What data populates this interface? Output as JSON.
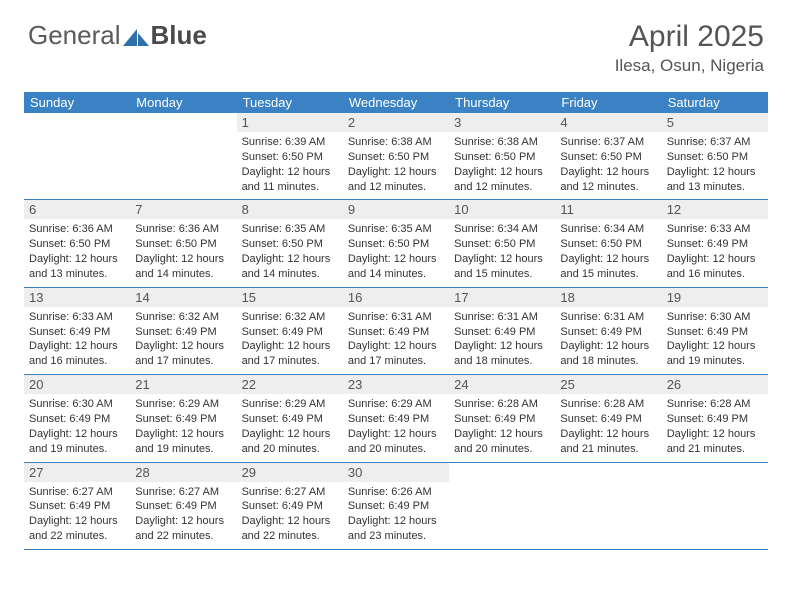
{
  "logo": {
    "general": "General",
    "blue": "Blue"
  },
  "header": {
    "title": "April 2025",
    "location": "Ilesa, Osun, Nigeria"
  },
  "colors": {
    "headerBar": "#3b82c4",
    "weekBorder": "#3b82c4",
    "dayBg": "#eeeeee",
    "text": "#333333"
  },
  "dayNames": [
    "Sunday",
    "Monday",
    "Tuesday",
    "Wednesday",
    "Thursday",
    "Friday",
    "Saturday"
  ],
  "weeks": [
    [
      {
        "n": "",
        "sr": "",
        "ss": "",
        "dl": ""
      },
      {
        "n": "",
        "sr": "",
        "ss": "",
        "dl": ""
      },
      {
        "n": "1",
        "sr": "Sunrise: 6:39 AM",
        "ss": "Sunset: 6:50 PM",
        "dl": "Daylight: 12 hours and 11 minutes."
      },
      {
        "n": "2",
        "sr": "Sunrise: 6:38 AM",
        "ss": "Sunset: 6:50 PM",
        "dl": "Daylight: 12 hours and 12 minutes."
      },
      {
        "n": "3",
        "sr": "Sunrise: 6:38 AM",
        "ss": "Sunset: 6:50 PM",
        "dl": "Daylight: 12 hours and 12 minutes."
      },
      {
        "n": "4",
        "sr": "Sunrise: 6:37 AM",
        "ss": "Sunset: 6:50 PM",
        "dl": "Daylight: 12 hours and 12 minutes."
      },
      {
        "n": "5",
        "sr": "Sunrise: 6:37 AM",
        "ss": "Sunset: 6:50 PM",
        "dl": "Daylight: 12 hours and 13 minutes."
      }
    ],
    [
      {
        "n": "6",
        "sr": "Sunrise: 6:36 AM",
        "ss": "Sunset: 6:50 PM",
        "dl": "Daylight: 12 hours and 13 minutes."
      },
      {
        "n": "7",
        "sr": "Sunrise: 6:36 AM",
        "ss": "Sunset: 6:50 PM",
        "dl": "Daylight: 12 hours and 14 minutes."
      },
      {
        "n": "8",
        "sr": "Sunrise: 6:35 AM",
        "ss": "Sunset: 6:50 PM",
        "dl": "Daylight: 12 hours and 14 minutes."
      },
      {
        "n": "9",
        "sr": "Sunrise: 6:35 AM",
        "ss": "Sunset: 6:50 PM",
        "dl": "Daylight: 12 hours and 14 minutes."
      },
      {
        "n": "10",
        "sr": "Sunrise: 6:34 AM",
        "ss": "Sunset: 6:50 PM",
        "dl": "Daylight: 12 hours and 15 minutes."
      },
      {
        "n": "11",
        "sr": "Sunrise: 6:34 AM",
        "ss": "Sunset: 6:50 PM",
        "dl": "Daylight: 12 hours and 15 minutes."
      },
      {
        "n": "12",
        "sr": "Sunrise: 6:33 AM",
        "ss": "Sunset: 6:49 PM",
        "dl": "Daylight: 12 hours and 16 minutes."
      }
    ],
    [
      {
        "n": "13",
        "sr": "Sunrise: 6:33 AM",
        "ss": "Sunset: 6:49 PM",
        "dl": "Daylight: 12 hours and 16 minutes."
      },
      {
        "n": "14",
        "sr": "Sunrise: 6:32 AM",
        "ss": "Sunset: 6:49 PM",
        "dl": "Daylight: 12 hours and 17 minutes."
      },
      {
        "n": "15",
        "sr": "Sunrise: 6:32 AM",
        "ss": "Sunset: 6:49 PM",
        "dl": "Daylight: 12 hours and 17 minutes."
      },
      {
        "n": "16",
        "sr": "Sunrise: 6:31 AM",
        "ss": "Sunset: 6:49 PM",
        "dl": "Daylight: 12 hours and 17 minutes."
      },
      {
        "n": "17",
        "sr": "Sunrise: 6:31 AM",
        "ss": "Sunset: 6:49 PM",
        "dl": "Daylight: 12 hours and 18 minutes."
      },
      {
        "n": "18",
        "sr": "Sunrise: 6:31 AM",
        "ss": "Sunset: 6:49 PM",
        "dl": "Daylight: 12 hours and 18 minutes."
      },
      {
        "n": "19",
        "sr": "Sunrise: 6:30 AM",
        "ss": "Sunset: 6:49 PM",
        "dl": "Daylight: 12 hours and 19 minutes."
      }
    ],
    [
      {
        "n": "20",
        "sr": "Sunrise: 6:30 AM",
        "ss": "Sunset: 6:49 PM",
        "dl": "Daylight: 12 hours and 19 minutes."
      },
      {
        "n": "21",
        "sr": "Sunrise: 6:29 AM",
        "ss": "Sunset: 6:49 PM",
        "dl": "Daylight: 12 hours and 19 minutes."
      },
      {
        "n": "22",
        "sr": "Sunrise: 6:29 AM",
        "ss": "Sunset: 6:49 PM",
        "dl": "Daylight: 12 hours and 20 minutes."
      },
      {
        "n": "23",
        "sr": "Sunrise: 6:29 AM",
        "ss": "Sunset: 6:49 PM",
        "dl": "Daylight: 12 hours and 20 minutes."
      },
      {
        "n": "24",
        "sr": "Sunrise: 6:28 AM",
        "ss": "Sunset: 6:49 PM",
        "dl": "Daylight: 12 hours and 20 minutes."
      },
      {
        "n": "25",
        "sr": "Sunrise: 6:28 AM",
        "ss": "Sunset: 6:49 PM",
        "dl": "Daylight: 12 hours and 21 minutes."
      },
      {
        "n": "26",
        "sr": "Sunrise: 6:28 AM",
        "ss": "Sunset: 6:49 PM",
        "dl": "Daylight: 12 hours and 21 minutes."
      }
    ],
    [
      {
        "n": "27",
        "sr": "Sunrise: 6:27 AM",
        "ss": "Sunset: 6:49 PM",
        "dl": "Daylight: 12 hours and 22 minutes."
      },
      {
        "n": "28",
        "sr": "Sunrise: 6:27 AM",
        "ss": "Sunset: 6:49 PM",
        "dl": "Daylight: 12 hours and 22 minutes."
      },
      {
        "n": "29",
        "sr": "Sunrise: 6:27 AM",
        "ss": "Sunset: 6:49 PM",
        "dl": "Daylight: 12 hours and 22 minutes."
      },
      {
        "n": "30",
        "sr": "Sunrise: 6:26 AM",
        "ss": "Sunset: 6:49 PM",
        "dl": "Daylight: 12 hours and 23 minutes."
      },
      {
        "n": "",
        "sr": "",
        "ss": "",
        "dl": ""
      },
      {
        "n": "",
        "sr": "",
        "ss": "",
        "dl": ""
      },
      {
        "n": "",
        "sr": "",
        "ss": "",
        "dl": ""
      }
    ]
  ]
}
